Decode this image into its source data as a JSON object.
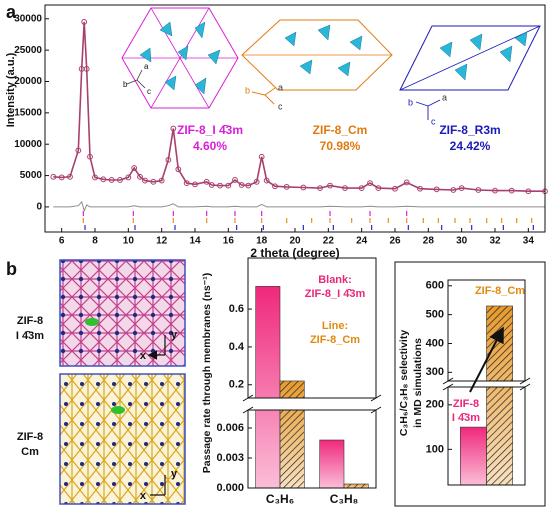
{
  "panel_labels": [
    "a",
    "b"
  ],
  "structures": [
    {
      "axes": [
        "b",
        "a",
        "c"
      ]
    },
    {
      "axes": [
        "b",
        "a",
        "c"
      ]
    },
    {
      "axes": [
        "b",
        "a",
        "c"
      ]
    }
  ],
  "membranes": [
    {
      "label": [
        "ZIF-8",
        "I 4̄3m"
      ],
      "axes": [
        "y",
        "x"
      ]
    },
    {
      "label": [
        "ZIF-8",
        "Cm"
      ],
      "axes": [
        "y",
        "x"
      ]
    }
  ],
  "chart_data": [
    {
      "type": "line",
      "xlabel": "2 theta (degree)",
      "ylabel": "Intensity (a.u.)",
      "xlim": [
        5,
        35
      ],
      "ylim": [
        -4000,
        32200
      ],
      "xticks": [
        6,
        8,
        10,
        12,
        14,
        16,
        18,
        20,
        22,
        24,
        26,
        28,
        30,
        32,
        34
      ],
      "yticks": [
        0,
        5000,
        10000,
        15000,
        20000,
        25000,
        30000
      ],
      "x": [
        5.5,
        6,
        6.5,
        7,
        7.2,
        7.35,
        7.5,
        7.7,
        8,
        8.5,
        9,
        9.5,
        10,
        10.35,
        10.7,
        11,
        11.5,
        12,
        12.4,
        12.7,
        13,
        13.5,
        14,
        14.7,
        15,
        15.5,
        16,
        16.4,
        16.8,
        17.2,
        17.7,
        18,
        18.3,
        18.8,
        19.5,
        20.5,
        21.5,
        22.1,
        23,
        24,
        24.5,
        25,
        26,
        26.7,
        27.5,
        28.5,
        29.5,
        30,
        31,
        32,
        33,
        34,
        35
      ],
      "series": [
        {
          "color": "#a8406e",
          "marker": "circle",
          "values": [
            4800,
            4700,
            4800,
            9000,
            22000,
            29500,
            22000,
            8000,
            4700,
            4400,
            4300,
            4300,
            4700,
            6200,
            4800,
            4200,
            4000,
            4200,
            7500,
            12500,
            6000,
            3800,
            3600,
            4000,
            3500,
            3400,
            3400,
            4300,
            3500,
            3400,
            4000,
            8000,
            4200,
            3300,
            3200,
            3100,
            3000,
            3400,
            3000,
            3000,
            3800,
            3000,
            2900,
            3900,
            2900,
            2800,
            2700,
            3000,
            2700,
            2600,
            2600,
            2500,
            2500
          ]
        },
        {
          "color": "#8c8c8c",
          "values": [
            0,
            0,
            0,
            200,
            800,
            -600,
            300,
            0,
            0,
            0,
            0,
            0,
            0,
            200,
            0,
            0,
            0,
            0,
            200,
            500,
            0,
            0,
            0,
            100,
            0,
            0,
            0,
            100,
            0,
            0,
            0,
            400,
            0,
            0,
            0,
            0,
            0,
            100,
            0,
            0,
            100,
            0,
            0,
            100,
            0,
            0,
            0,
            0,
            0,
            0,
            0,
            0,
            0
          ]
        }
      ],
      "reflections": [
        {
          "color": "#e020c8",
          "x": [
            7.3,
            10.3,
            12.7,
            14.7,
            16.4,
            18.0,
            22.1,
            24.5,
            26.7
          ]
        },
        {
          "color": "#e8901c",
          "x": [
            7.3,
            10.3,
            12.7,
            14.7,
            16.4,
            18.0,
            19.5,
            21.0,
            22.1,
            23.4,
            24.5,
            25.6,
            26.7,
            27.7,
            28.6,
            29.6,
            30.5,
            31.5,
            32.4,
            33.3,
            34.2
          ]
        },
        {
          "color": "#2030c8",
          "x": [
            7.4,
            10.4,
            12.8,
            16.5,
            18.1,
            20.5,
            22.3,
            24.6,
            26.8,
            28.8,
            30.6,
            32.5,
            34.3
          ]
        }
      ],
      "annotations": [
        {
          "text": "ZIF-8_I 4̄3m",
          "color": "#d81fd8"
        },
        {
          "text": "4.60%",
          "color": "#d81fd8"
        },
        {
          "text": "ZIF-8_Cm",
          "color": "#e07a10"
        },
        {
          "text": "70.98%",
          "color": "#e07a10"
        },
        {
          "text": "ZIF-8_R3m",
          "color": "#1a1ab8"
        },
        {
          "text": "24.42%",
          "color": "#1a1ab8"
        }
      ]
    },
    {
      "type": "bar",
      "ylabel": [
        "Passage rate through membranes (ns⁻¹)"
      ],
      "categories": [
        "C₃H₆",
        "C₃H₈"
      ],
      "axis_segments": [
        {
          "ylim": [
            0,
            0.0078
          ],
          "yticks": [
            {
              "value": 0,
              "label": "0.000"
            },
            0.003,
            0.006
          ]
        },
        {
          "ylim": [
            0.13,
            0.87
          ],
          "yticks": [
            0.2,
            0.4,
            0.6
          ]
        }
      ],
      "series": [
        {
          "color": "#f0287c",
          "values": [
            0.72,
            0.0048
          ]
        },
        {
          "color": "#e89a2c",
          "hatch": true,
          "values": [
            0.22,
            0.0004
          ]
        }
      ],
      "annotations": [
        {
          "text": "Blank:",
          "color": "#e8287a"
        },
        {
          "text": "ZIF-8_I 4̄3m",
          "color": "#e8287a"
        },
        {
          "text": "Line:",
          "color": "#e08a10"
        },
        {
          "text": "ZIF-8_Cm",
          "color": "#e08a10"
        }
      ]
    },
    {
      "type": "bar",
      "ylabel": [
        "C₃H₆/C₃H₈ selectivity",
        "in MD simulations"
      ],
      "categories": [
        null
      ],
      "axis_segments": [
        {
          "ylim": [
            20,
            240
          ],
          "yticks": [
            100,
            200
          ]
        },
        {
          "ylim": [
            270,
            620
          ],
          "yticks": [
            300,
            400,
            500,
            600
          ]
        }
      ],
      "series": [
        {
          "color": "#f0287c",
          "values": [
            150
          ]
        },
        {
          "color": "#e89a2c",
          "hatch": true,
          "values": [
            530
          ]
        }
      ],
      "annotations": [
        {
          "text": "ZIF-8_Cm",
          "color": "#e08a10"
        },
        {
          "text": "ZIF-8",
          "color": "#e8287a"
        },
        {
          "text": "I 4̄3m",
          "color": "#e8287a"
        }
      ]
    }
  ]
}
